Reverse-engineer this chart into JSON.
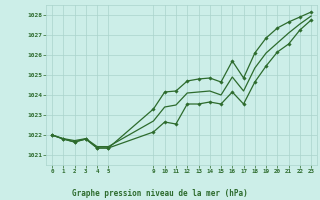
{
  "title": "Graphe pression niveau de la mer (hPa)",
  "bg_color": "#cceee8",
  "grid_color": "#aad4cc",
  "line_color": "#2d6b2d",
  "text_color": "#2d6b2d",
  "xlim": [
    -0.5,
    23.5
  ],
  "ylim": [
    1020.5,
    1028.5
  ],
  "yticks": [
    1021,
    1022,
    1023,
    1024,
    1025,
    1026,
    1027,
    1028
  ],
  "xtick_positions": [
    0,
    1,
    2,
    3,
    4,
    5,
    9,
    10,
    11,
    12,
    13,
    14,
    15,
    16,
    17,
    18,
    19,
    20,
    21,
    22,
    23
  ],
  "xtick_labels": [
    "0",
    "1",
    "2",
    "3",
    "4",
    "5",
    "9",
    "10",
    "11",
    "12",
    "13",
    "14",
    "15",
    "16",
    "17",
    "18",
    "19",
    "20",
    "21",
    "22",
    "23"
  ],
  "hours": [
    0,
    1,
    2,
    3,
    4,
    5,
    9,
    10,
    11,
    12,
    13,
    14,
    15,
    16,
    17,
    18,
    19,
    20,
    21,
    22,
    23
  ],
  "series_low": [
    1022.0,
    1021.8,
    1021.65,
    1021.8,
    1021.35,
    1021.35,
    1022.15,
    1022.65,
    1022.55,
    1023.55,
    1023.55,
    1023.65,
    1023.55,
    1024.15,
    1023.55,
    1024.65,
    1025.45,
    1026.15,
    1026.55,
    1027.25,
    1027.75
  ],
  "series_mid": [
    1022.0,
    1021.8,
    1021.65,
    1021.8,
    1021.35,
    1021.35,
    1023.3,
    1024.15,
    1024.2,
    1024.7,
    1024.8,
    1024.85,
    1024.65,
    1025.7,
    1024.85,
    1026.1,
    1026.85,
    1027.35,
    1027.65,
    1027.9,
    1028.15
  ],
  "series_smooth": [
    1022.0,
    1021.82,
    1021.72,
    1021.82,
    1021.42,
    1021.42,
    1022.7,
    1023.4,
    1023.5,
    1024.1,
    1024.15,
    1024.2,
    1024.0,
    1024.9,
    1024.2,
    1025.35,
    1026.1,
    1026.6,
    1027.1,
    1027.55,
    1027.95
  ]
}
